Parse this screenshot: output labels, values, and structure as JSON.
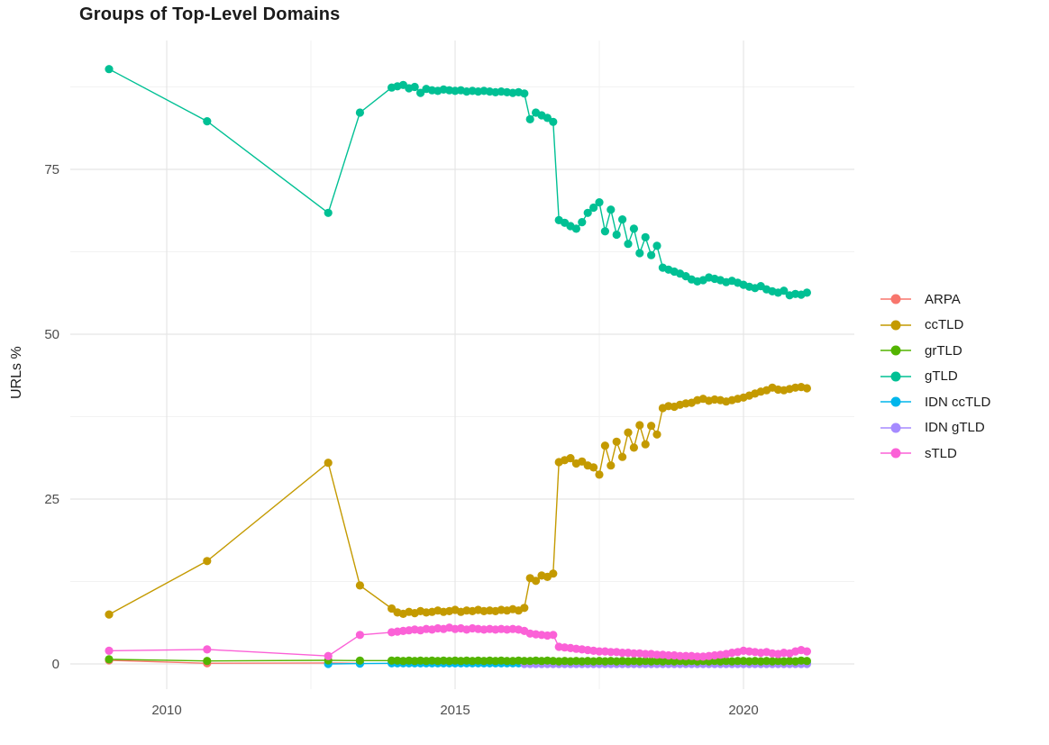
{
  "title": "Groups of Top-Level Domains",
  "y_axis_title": "URLs %",
  "legend": {
    "position": "right",
    "items": [
      {
        "label": "ARPA",
        "color": "#F8766D"
      },
      {
        "label": "ccTLD",
        "color": "#C49A00"
      },
      {
        "label": "grTLD",
        "color": "#53B400"
      },
      {
        "label": "gTLD",
        "color": "#00C094"
      },
      {
        "label": "IDN ccTLD",
        "color": "#00B6EB"
      },
      {
        "label": "IDN gTLD",
        "color": "#A58AFF"
      },
      {
        "label": "sTLD",
        "color": "#FB61D7"
      }
    ]
  },
  "chart_data": {
    "type": "line",
    "title": "Groups of Top-Level Domains",
    "xlabel": "",
    "ylabel": "URLs %",
    "xlim": [
      2008.4,
      2021.9
    ],
    "ylim": [
      -3.8,
      94.5
    ],
    "grid": "on",
    "legend_position": "right",
    "axes": {
      "x_ticks": [
        {
          "label": "2010",
          "value": 2010
        },
        {
          "label": "2015",
          "value": 2015
        },
        {
          "label": "2020",
          "value": 2020
        }
      ],
      "y_ticks": [
        {
          "label": "0",
          "value": 0
        },
        {
          "label": "25",
          "value": 25
        },
        {
          "label": "50",
          "value": 50
        },
        {
          "label": "75",
          "value": 75
        }
      ],
      "x_minor": [
        2012.5,
        2017.5
      ],
      "y_minor": [
        12.5,
        37.5,
        62.5,
        87.5
      ]
    },
    "x": [
      2009.0,
      2010.7,
      2012.8,
      2013.35,
      2013.9,
      2014.0,
      2014.1,
      2014.2,
      2014.3,
      2014.4,
      2014.5,
      2014.6,
      2014.7,
      2014.8,
      2014.9,
      2015.0,
      2015.1,
      2015.2,
      2015.3,
      2015.4,
      2015.5,
      2015.6,
      2015.7,
      2015.8,
      2015.9,
      2016.0,
      2016.1,
      2016.2,
      2016.3,
      2016.4,
      2016.5,
      2016.6,
      2016.7,
      2016.8,
      2016.9,
      2017.0,
      2017.1,
      2017.2,
      2017.3,
      2017.4,
      2017.5,
      2017.6,
      2017.7,
      2017.8,
      2017.9,
      2018.0,
      2018.1,
      2018.2,
      2018.3,
      2018.4,
      2018.5,
      2018.6,
      2018.7,
      2018.8,
      2018.9,
      2019.0,
      2019.1,
      2019.2,
      2019.3,
      2019.4,
      2019.5,
      2019.6,
      2019.7,
      2019.8,
      2019.9,
      2020.0,
      2020.1,
      2020.2,
      2020.3,
      2020.4,
      2020.5,
      2020.6,
      2020.7,
      2020.8,
      2020.9,
      2021.0,
      2021.1
    ],
    "series": [
      {
        "id": "arpa",
        "name": "ARPA",
        "color": "#F8766D",
        "x": [
          2009.0,
          2010.7,
          2012.8,
          2013.35
        ],
        "values": [
          0.55,
          0.1,
          0.15,
          0.1
        ]
      },
      {
        "id": "idn-cctld",
        "name": "IDN ccTLD",
        "color": "#00B6EB",
        "x_start_index": 2,
        "values": [
          0,
          0.05,
          0.1,
          0.1,
          0.1,
          0.1,
          0.1,
          0.1,
          0.1,
          0.1,
          0.1,
          0.1,
          0.1,
          0.1,
          0.1,
          0.1,
          0.1,
          0.1,
          0.1,
          0.1,
          0.1,
          0.1,
          0.1,
          0.1,
          0.1,
          0.1,
          0.1,
          0.1,
          0.1,
          0.1,
          0.1,
          0.1,
          0.1,
          0.1,
          0.1,
          0.1,
          0.1,
          0.1,
          0.1,
          0.1,
          0.1,
          0.1,
          0.1,
          0.1,
          0.1,
          0.1,
          0.1,
          0.1,
          0.1,
          0.1,
          0.1,
          0.1,
          0.1,
          0.1,
          0.1,
          0.1,
          0.1,
          0.1,
          0.1,
          0.1,
          0.1,
          0.1,
          0.1,
          0.1,
          0.1,
          0.1,
          0.1,
          0.1,
          0.1,
          0.1,
          0.1,
          0.1,
          0.1,
          0.1,
          0.1
        ]
      },
      {
        "id": "idn-gtld",
        "name": "IDN gTLD",
        "color": "#A58AFF",
        "x_start_index": 27,
        "values": [
          0,
          0,
          0,
          0,
          0,
          0,
          0,
          0,
          0,
          0,
          0,
          0,
          0,
          0,
          0,
          0,
          0,
          0,
          0,
          0,
          0,
          0,
          0,
          0,
          0,
          0,
          0,
          0,
          0,
          0,
          0,
          0,
          0,
          0,
          0,
          0,
          0,
          0,
          0,
          0,
          0,
          0,
          0,
          0,
          0,
          0,
          0,
          0,
          0,
          0
        ]
      },
      {
        "id": "grtld",
        "name": "grTLD",
        "color": "#53B400",
        "x_start_index": 0,
        "values": [
          0.7,
          0.45,
          0.55,
          0.5,
          0.5,
          0.5,
          0.45,
          0.5,
          0.45,
          0.5,
          0.45,
          0.5,
          0.45,
          0.5,
          0.45,
          0.5,
          0.45,
          0.5,
          0.45,
          0.5,
          0.45,
          0.5,
          0.45,
          0.5,
          0.45,
          0.45,
          0.5,
          0.45,
          0.45,
          0.5,
          0.45,
          0.5,
          0.45,
          0.4,
          0.45,
          0.4,
          0.45,
          0.4,
          0.45,
          0.4,
          0.45,
          0.4,
          0.45,
          0.4,
          0.45,
          0.4,
          0.45,
          0.4,
          0.45,
          0.4,
          0.45,
          0.4,
          0.45,
          0.4,
          0.45,
          0.4,
          0.45,
          0.4,
          0.45,
          0.4,
          0.45,
          0.4,
          0.45,
          0.4,
          0.45,
          0.45,
          0.4,
          0.45,
          0.4,
          0.45,
          0.4,
          0.45,
          0.4,
          0.45,
          0.4,
          0.5,
          0.45
        ]
      },
      {
        "id": "stld",
        "name": "sTLD",
        "color": "#FB61D7",
        "x_start_index": 0,
        "values": [
          2.0,
          2.2,
          1.2,
          4.4,
          4.8,
          4.9,
          5.0,
          5.1,
          5.2,
          5.1,
          5.3,
          5.2,
          5.4,
          5.3,
          5.5,
          5.3,
          5.4,
          5.2,
          5.4,
          5.3,
          5.2,
          5.3,
          5.2,
          5.3,
          5.2,
          5.3,
          5.2,
          5.0,
          4.6,
          4.5,
          4.4,
          4.3,
          4.4,
          2.6,
          2.5,
          2.4,
          2.3,
          2.2,
          2.1,
          2.0,
          1.9,
          1.9,
          1.8,
          1.8,
          1.7,
          1.7,
          1.6,
          1.6,
          1.5,
          1.5,
          1.4,
          1.4,
          1.3,
          1.3,
          1.2,
          1.2,
          1.2,
          1.1,
          1.1,
          1.2,
          1.3,
          1.4,
          1.5,
          1.7,
          1.8,
          2.0,
          1.9,
          1.8,
          1.7,
          1.8,
          1.6,
          1.5,
          1.7,
          1.6,
          1.9,
          2.1,
          1.9
        ]
      },
      {
        "id": "cctld",
        "name": "ccTLD",
        "color": "#C49A00",
        "x_start_index": 0,
        "values": [
          7.5,
          15.6,
          30.5,
          11.9,
          8.4,
          7.8,
          7.6,
          7.9,
          7.7,
          8.0,
          7.8,
          7.9,
          8.1,
          7.9,
          8.0,
          8.2,
          7.9,
          8.1,
          8.0,
          8.2,
          8.0,
          8.1,
          8.0,
          8.2,
          8.1,
          8.3,
          8.1,
          8.5,
          13.0,
          12.6,
          13.4,
          13.2,
          13.7,
          30.6,
          30.9,
          31.2,
          30.4,
          30.7,
          30.1,
          29.8,
          28.7,
          33.1,
          30.1,
          33.7,
          31.4,
          35.1,
          32.8,
          36.2,
          33.3,
          36.1,
          34.8,
          38.8,
          39.1,
          39.0,
          39.3,
          39.5,
          39.6,
          40.0,
          40.2,
          39.9,
          40.1,
          40.0,
          39.8,
          40.0,
          40.2,
          40.4,
          40.7,
          41.0,
          41.3,
          41.5,
          41.9,
          41.6,
          41.5,
          41.7,
          41.9,
          42.0,
          41.8
        ]
      },
      {
        "id": "gtld",
        "name": "gTLD",
        "color": "#00C094",
        "x_start_index": 0,
        "values": [
          90.2,
          82.3,
          68.4,
          83.6,
          87.4,
          87.6,
          87.8,
          87.3,
          87.5,
          86.6,
          87.2,
          87.0,
          86.9,
          87.1,
          87.0,
          86.9,
          87.0,
          86.8,
          86.9,
          86.8,
          86.9,
          86.8,
          86.7,
          86.8,
          86.7,
          86.6,
          86.7,
          86.5,
          82.6,
          83.6,
          83.2,
          82.8,
          82.2,
          67.3,
          66.9,
          66.4,
          66.0,
          67.0,
          68.4,
          69.2,
          70.0,
          65.6,
          68.9,
          65.1,
          67.4,
          63.7,
          66.0,
          62.3,
          64.7,
          62.0,
          63.4,
          60.1,
          59.8,
          59.5,
          59.2,
          58.8,
          58.3,
          58.0,
          58.2,
          58.6,
          58.4,
          58.2,
          57.9,
          58.1,
          57.8,
          57.5,
          57.2,
          57.0,
          57.3,
          56.8,
          56.5,
          56.3,
          56.6,
          55.9,
          56.1,
          56.0,
          56.3
        ]
      }
    ]
  }
}
